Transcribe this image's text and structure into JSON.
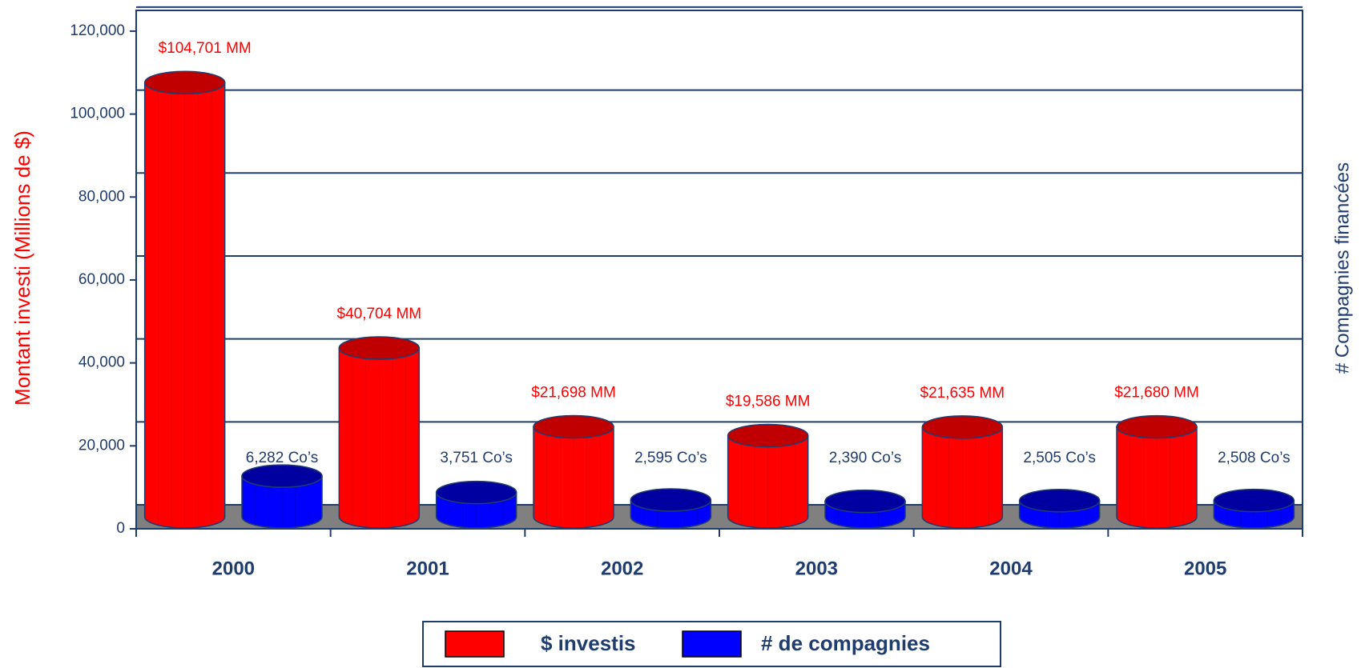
{
  "chart_data": {
    "type": "bar3d",
    "ylabel": "Montant investi (Millions de $)",
    "y2label": "# Compagnies financées",
    "categories": [
      "2000",
      "2001",
      "2002",
      "2003",
      "2004",
      "2005"
    ],
    "series": [
      {
        "name": "$ investis",
        "color": "#ff0000",
        "values": [
          104701,
          40704,
          21698,
          19586,
          21635,
          21680
        ],
        "value_labels": [
          "$104,701 MM",
          "$40,704 MM",
          "$21,698 MM",
          "$19,586 MM",
          "$21,635 MM",
          "$21,680 MM"
        ]
      },
      {
        "name": "# de compagnies",
        "color": "#0000ff",
        "axis": "y2",
        "values": [
          6282,
          3751,
          2595,
          2390,
          2505,
          2508
        ],
        "value_labels": [
          "6,282 Co’s",
          "3,751 Co’s",
          "2,595 Co’s",
          "2,390 Co’s",
          "2,505 Co’s",
          "2,508 Co’s"
        ]
      }
    ],
    "ylim": [
      0,
      125000
    ],
    "yticks": [
      0,
      {
        "value": 20000,
        "label": "20,000"
      },
      {
        "value": 40000,
        "label": "40,000"
      },
      {
        "value": 60000,
        "label": "60,000"
      },
      {
        "value": 80000,
        "label": "80,000"
      },
      {
        "value": 100000,
        "label": "100,000"
      },
      {
        "value": 120000,
        "label": "120,000"
      }
    ],
    "y2lim": [
      0,
      80000
    ],
    "grid": true,
    "legend": "bottom"
  }
}
